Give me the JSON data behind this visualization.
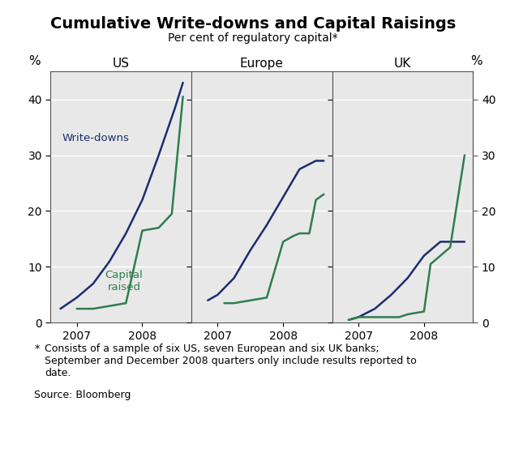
{
  "title": "Cumulative Write-downs and Capital Raisings",
  "subtitle": "Per cent of regulatory capital*",
  "ylim": [
    0,
    45
  ],
  "yticks": [
    0,
    10,
    20,
    30,
    40
  ],
  "ylabel_left": "%",
  "ylabel_right": "%",
  "panels": [
    "US",
    "Europe",
    "UK"
  ],
  "writedowns_color": "#1c2d6e",
  "capital_color": "#2e7d4f",
  "background_color": "#e8e8e8",
  "grid_color": "#ffffff",
  "footnote_star": "*",
  "footnote_text": "Consists of a sample of six US, seven European and six UK banks;\nSeptember and December 2008 quarters only include results reported to\ndate.",
  "source": "Source: Bloomberg",
  "us_writedowns_x": [
    2006.75,
    2007.0,
    2007.25,
    2007.5,
    2007.75,
    2008.0,
    2008.25,
    2008.5,
    2008.62
  ],
  "us_writedowns_y": [
    2.5,
    4.5,
    7.0,
    11.0,
    16.0,
    22.0,
    30.0,
    38.5,
    43.0
  ],
  "us_capital_x": [
    2007.0,
    2007.25,
    2007.5,
    2007.75,
    2008.0,
    2008.25,
    2008.45,
    2008.62
  ],
  "us_capital_y": [
    2.5,
    2.5,
    3.0,
    3.5,
    16.5,
    17.0,
    19.5,
    40.5
  ],
  "eu_writedowns_x": [
    2006.85,
    2007.0,
    2007.25,
    2007.5,
    2007.75,
    2008.0,
    2008.25,
    2008.5,
    2008.62
  ],
  "eu_writedowns_y": [
    4.0,
    5.0,
    8.0,
    13.0,
    17.5,
    22.5,
    27.5,
    29.0,
    29.0
  ],
  "eu_capital_x": [
    2007.1,
    2007.25,
    2007.5,
    2007.75,
    2008.0,
    2008.15,
    2008.25,
    2008.4,
    2008.5,
    2008.62
  ],
  "eu_capital_y": [
    3.5,
    3.5,
    4.0,
    4.5,
    14.5,
    15.5,
    16.0,
    16.0,
    22.0,
    23.0
  ],
  "uk_writedowns_x": [
    2006.85,
    2007.0,
    2007.25,
    2007.5,
    2007.75,
    2008.0,
    2008.15,
    2008.25,
    2008.5,
    2008.62
  ],
  "uk_writedowns_y": [
    0.5,
    1.0,
    2.5,
    5.0,
    8.0,
    12.0,
    13.5,
    14.5,
    14.5,
    14.5
  ],
  "uk_capital_x": [
    2006.85,
    2007.0,
    2007.25,
    2007.5,
    2007.62,
    2007.75,
    2008.0,
    2008.1,
    2008.25,
    2008.4,
    2008.62
  ],
  "uk_capital_y": [
    0.5,
    1.0,
    1.0,
    1.0,
    1.0,
    1.5,
    2.0,
    10.5,
    12.0,
    13.5,
    30.0
  ],
  "xtick_positions": [
    2007.0,
    2008.0
  ],
  "xtick_labels": [
    "2007",
    "2008"
  ],
  "xlim": [
    2006.6,
    2008.75
  ]
}
